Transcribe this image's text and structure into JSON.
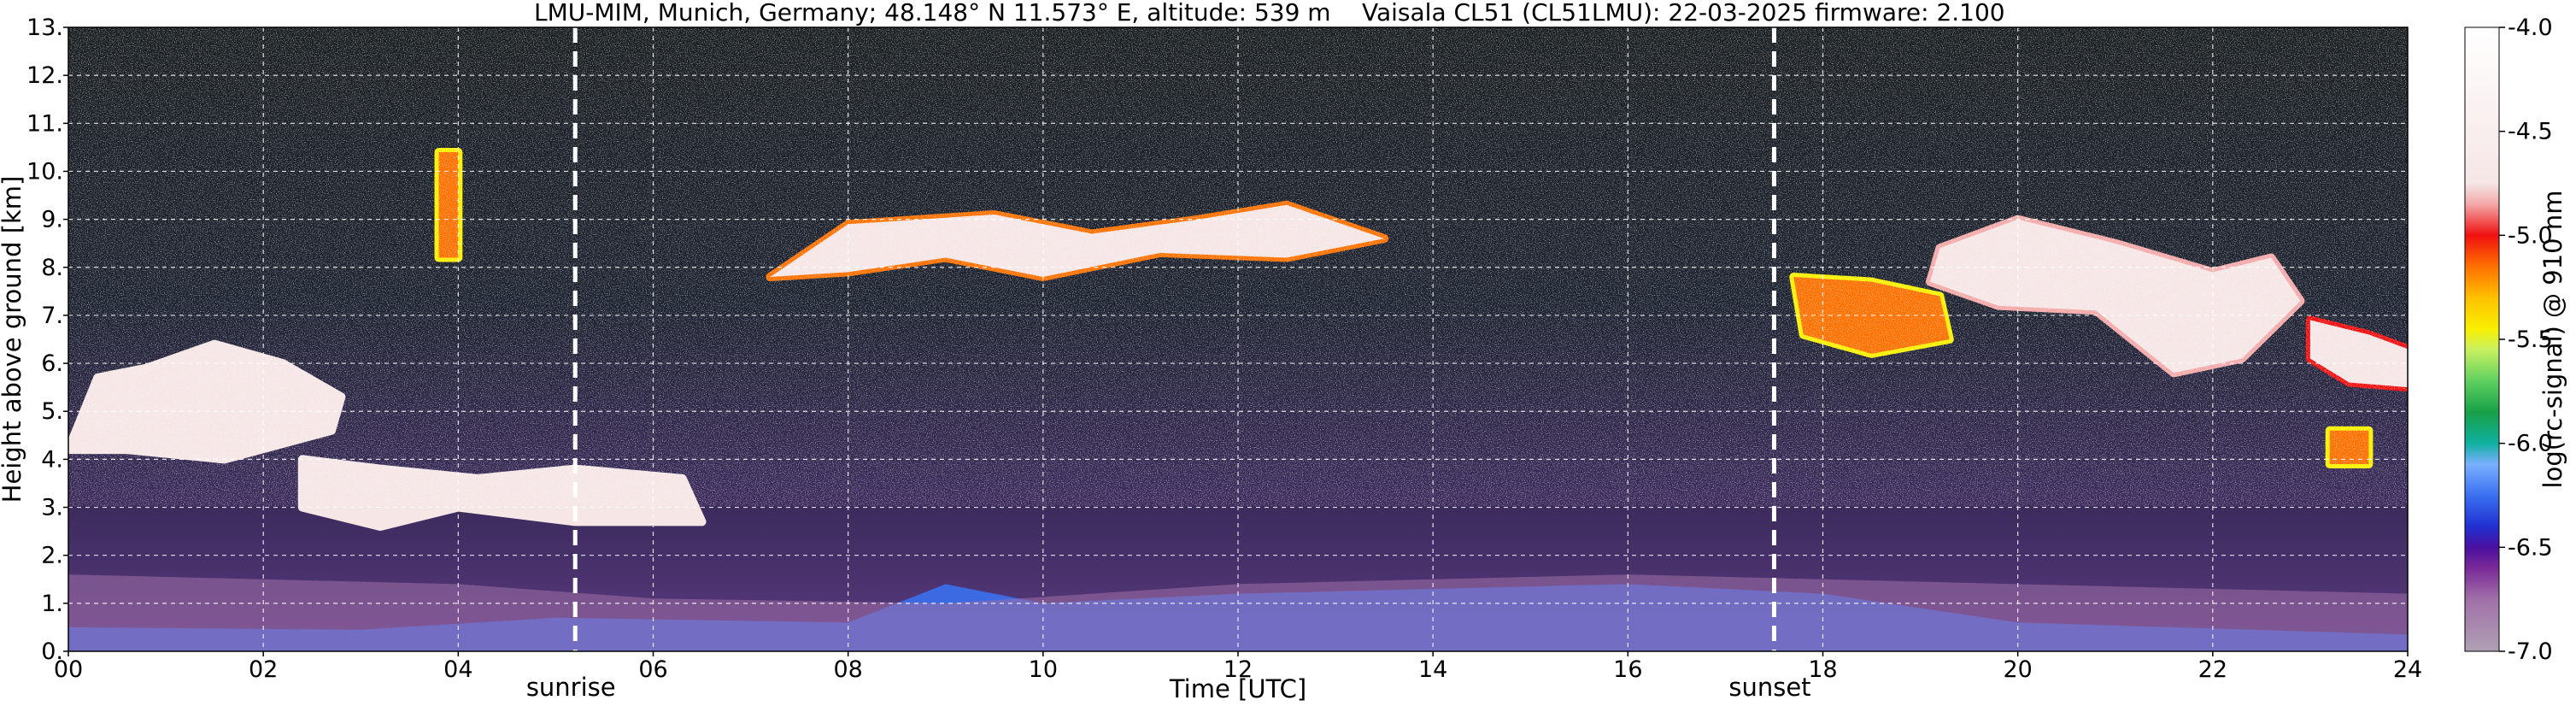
{
  "chart_data": {
    "type": "heatmap",
    "title_left": "LMU-MIM, Munich, Germany; 48.148° N 11.573° E, altitude: 539 m",
    "title_right": "Vaisala CL51 (CL51LMU): 22-03-2025    firmware: 2.100",
    "xlabel": "Time [UTC]",
    "ylabel": "Height above ground [km]",
    "colorbar_label": "log(rc-signal) @ 910 nm",
    "xlim": [
      0,
      24
    ],
    "ylim": [
      0,
      13
    ],
    "clim": [
      -7.0,
      -4.0
    ],
    "grid": true,
    "xticks": [
      {
        "value": 0,
        "label": "00"
      },
      {
        "value": 2,
        "label": "02"
      },
      {
        "value": 4,
        "label": "04"
      },
      {
        "value": 6,
        "label": "06"
      },
      {
        "value": 8,
        "label": "08"
      },
      {
        "value": 10,
        "label": "10"
      },
      {
        "value": 12,
        "label": "12"
      },
      {
        "value": 14,
        "label": "14"
      },
      {
        "value": 16,
        "label": "16"
      },
      {
        "value": 18,
        "label": "18"
      },
      {
        "value": 20,
        "label": "20"
      },
      {
        "value": 22,
        "label": "22"
      },
      {
        "value": 24,
        "label": "24"
      }
    ],
    "yticks": [
      {
        "value": 0,
        "label": "0."
      },
      {
        "value": 1,
        "label": "1."
      },
      {
        "value": 2,
        "label": "2."
      },
      {
        "value": 3,
        "label": "3."
      },
      {
        "value": 4,
        "label": "4."
      },
      {
        "value": 5,
        "label": "5."
      },
      {
        "value": 6,
        "label": "6."
      },
      {
        "value": 7,
        "label": "7."
      },
      {
        "value": 8,
        "label": "8."
      },
      {
        "value": 9,
        "label": "9."
      },
      {
        "value": 10,
        "label": "10."
      },
      {
        "value": 11,
        "label": "11."
      },
      {
        "value": 12,
        "label": "12."
      },
      {
        "value": 13,
        "label": "13."
      }
    ],
    "cticks": [
      {
        "value": -4.0,
        "label": "-4.0"
      },
      {
        "value": -4.5,
        "label": "-4.5"
      },
      {
        "value": -5.0,
        "label": "-5.0"
      },
      {
        "value": -5.5,
        "label": "-5.5"
      },
      {
        "value": -6.0,
        "label": "-6.0"
      },
      {
        "value": -6.5,
        "label": "-6.5"
      },
      {
        "value": -7.0,
        "label": "-7.0"
      }
    ],
    "markers": [
      {
        "label": "sunrise",
        "time": 5.2
      },
      {
        "label": "sunset",
        "time": 17.5
      }
    ],
    "colormap": [
      {
        "value": -7.0,
        "color": "#b0a0b4"
      },
      {
        "value": -6.75,
        "color": "#a070a8"
      },
      {
        "value": -6.6,
        "color": "#7a2a98"
      },
      {
        "value": -6.5,
        "color": "#4a10a0"
      },
      {
        "value": -6.4,
        "color": "#2030d0"
      },
      {
        "value": -6.25,
        "color": "#3a70f0"
      },
      {
        "value": -6.1,
        "color": "#7ab0ff"
      },
      {
        "value": -6.0,
        "color": "#10b0a0"
      },
      {
        "value": -5.85,
        "color": "#18a048"
      },
      {
        "value": -5.7,
        "color": "#60d060"
      },
      {
        "value": -5.55,
        "color": "#c8f060"
      },
      {
        "value": -5.45,
        "color": "#f8f000"
      },
      {
        "value": -5.3,
        "color": "#ffc000"
      },
      {
        "value": -5.15,
        "color": "#ff7000"
      },
      {
        "value": -5.0,
        "color": "#f01010"
      },
      {
        "value": -4.85,
        "color": "#f4a8a8"
      },
      {
        "value": -4.75,
        "color": "#f6e6e6"
      },
      {
        "value": -4.0,
        "color": "#ffffff"
      }
    ],
    "features": [
      {
        "kind": "surface",
        "intensity": -6.2,
        "segments": [
          [
            0,
            0.5
          ],
          [
            3,
            0.45
          ],
          [
            5,
            0.7
          ],
          [
            8,
            0.6
          ],
          [
            9,
            1.4
          ],
          [
            10,
            1.0
          ],
          [
            12,
            1.2
          ],
          [
            14,
            1.3
          ],
          [
            16,
            1.4
          ],
          [
            18,
            1.2
          ],
          [
            20,
            0.6
          ],
          [
            24,
            0.35
          ]
        ]
      },
      {
        "kind": "layer",
        "intensity": -6.6,
        "segments": [
          [
            0,
            1.6
          ],
          [
            4,
            1.4
          ],
          [
            6,
            1.1
          ],
          [
            9,
            1.0
          ],
          [
            12,
            1.4
          ],
          [
            16,
            1.6
          ],
          [
            20,
            1.4
          ],
          [
            24,
            1.2
          ]
        ]
      },
      {
        "kind": "cloud",
        "intensity": -4.3,
        "points": [
          [
            0,
            4.2
          ],
          [
            0.3,
            5.7
          ],
          [
            0.8,
            5.9
          ],
          [
            1.5,
            6.4
          ],
          [
            2.2,
            6.0
          ],
          [
            2.8,
            5.3
          ],
          [
            2.7,
            4.6
          ],
          [
            1.6,
            4.0
          ],
          [
            0.6,
            4.2
          ]
        ]
      },
      {
        "kind": "cloud",
        "intensity": -4.3,
        "points": [
          [
            2.4,
            4.0
          ],
          [
            3.2,
            3.8
          ],
          [
            4.2,
            3.6
          ],
          [
            5.2,
            3.8
          ],
          [
            6.3,
            3.6
          ],
          [
            6.5,
            2.7
          ],
          [
            5.2,
            2.7
          ],
          [
            4.0,
            3.0
          ],
          [
            3.2,
            2.6
          ],
          [
            2.4,
            3.0
          ]
        ]
      },
      {
        "kind": "cloud",
        "intensity": -4.7,
        "points": [
          [
            7.2,
            7.8
          ],
          [
            8.0,
            8.9
          ],
          [
            9.5,
            9.1
          ],
          [
            10.5,
            8.7
          ],
          [
            11.6,
            9.0
          ],
          [
            12.5,
            9.3
          ],
          [
            13.5,
            8.6
          ],
          [
            12.5,
            8.2
          ],
          [
            11.2,
            8.3
          ],
          [
            10.0,
            7.8
          ],
          [
            9.0,
            8.2
          ],
          [
            8.0,
            7.9
          ]
        ]
      },
      {
        "kind": "cloud",
        "intensity": -5.0,
        "points": [
          [
            17.7,
            7.8
          ],
          [
            18.5,
            7.7
          ],
          [
            19.2,
            7.4
          ],
          [
            19.3,
            6.5
          ],
          [
            18.5,
            6.2
          ],
          [
            17.8,
            6.6
          ]
        ]
      },
      {
        "kind": "cloud",
        "intensity": -4.4,
        "points": [
          [
            19.2,
            8.4
          ],
          [
            20.0,
            9.0
          ],
          [
            21.0,
            8.5
          ],
          [
            22.0,
            7.9
          ],
          [
            22.6,
            8.2
          ],
          [
            22.9,
            7.3
          ],
          [
            22.3,
            6.1
          ],
          [
            21.6,
            5.8
          ],
          [
            20.8,
            7.1
          ],
          [
            19.8,
            7.2
          ],
          [
            19.1,
            7.7
          ]
        ]
      },
      {
        "kind": "cloud",
        "intensity": -4.5,
        "points": [
          [
            23.0,
            6.9
          ],
          [
            23.6,
            6.6
          ],
          [
            24.0,
            6.3
          ],
          [
            24.0,
            5.5
          ],
          [
            23.4,
            5.6
          ],
          [
            23.0,
            6.1
          ]
        ]
      },
      {
        "kind": "cloud",
        "intensity": -5.1,
        "points": [
          [
            3.8,
            10.4
          ],
          [
            4.0,
            10.4
          ],
          [
            4.0,
            8.2
          ],
          [
            3.8,
            8.2
          ]
        ]
      },
      {
        "kind": "cloud",
        "intensity": -5.1,
        "points": [
          [
            23.2,
            4.6
          ],
          [
            23.6,
            4.6
          ],
          [
            23.6,
            3.9
          ],
          [
            23.2,
            3.9
          ]
        ]
      }
    ]
  }
}
